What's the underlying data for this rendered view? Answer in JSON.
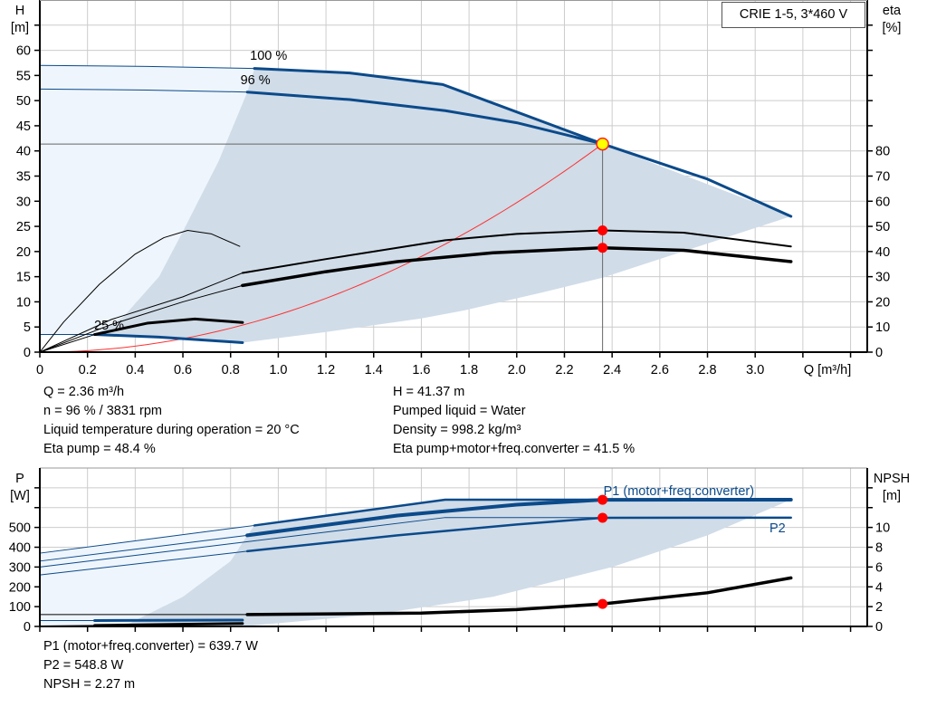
{
  "colors": {
    "curve_blue": "#0b4a8a",
    "shade_dark": "#d0dce8",
    "shade_light": "#eef5fc",
    "system_curve": "#ff3030",
    "duty_point_fill": "#ffff00",
    "duty_point_stroke": "#ff2020",
    "marker": "#ff0000",
    "grid": "#cccccc"
  },
  "title_box": "CRIE 1-5, 3*460 V",
  "top_info": {
    "left": [
      "Q = 2.36 m³/h",
      "n = 96 % / 3831 rpm",
      "Liquid temperature during operation = 20 °C",
      "Eta pump = 48.4 %"
    ],
    "right": [
      "H = 41.37 m",
      "Pumped liquid = Water",
      "Density = 998.2 kg/m³",
      "Eta pump+motor+freq.converter = 41.5 %"
    ]
  },
  "bottom_info": [
    "P1 (motor+freq.converter) = 639.7 W",
    "P2 = 548.8 W",
    "NPSH = 2.27 m"
  ],
  "chart_data": [
    {
      "type": "line",
      "xlabel": "Q [m³/h]",
      "ylabel_left": [
        "H",
        "[m]"
      ],
      "ylabel_right": [
        "eta",
        "[%]"
      ],
      "xlim": [
        0,
        3.47
      ],
      "ylim_left": [
        0,
        70
      ],
      "ylim_right": [
        0,
        140
      ],
      "xticks": [
        "0",
        "0.2",
        "0.4",
        "0.6",
        "0.8",
        "1.0",
        "1.2",
        "1.4",
        "1.6",
        "1.8",
        "2.0",
        "2.2",
        "2.4",
        "2.6",
        "2.8",
        "3.0"
      ],
      "yticks_left": [
        0,
        5,
        10,
        15,
        20,
        25,
        30,
        35,
        40,
        45,
        50,
        55,
        60
      ],
      "yticks_right": [
        0,
        10,
        20,
        30,
        40,
        50,
        60,
        70,
        80
      ],
      "grid": true,
      "curve_labels": [
        "100 %",
        "96 %",
        "25 %"
      ],
      "operating_range": [
        [
          0.9,
          56.4
        ],
        [
          1.3,
          55.5
        ],
        [
          1.69,
          53.2
        ],
        [
          2.36,
          41.4
        ],
        [
          3.15,
          27
        ],
        [
          2.36,
          14.8
        ],
        [
          2.11,
          11.9
        ],
        [
          1.78,
          8.3
        ],
        [
          1.6,
          6.7
        ],
        [
          1.2,
          4.0
        ],
        [
          0.85,
          1.9
        ],
        [
          0.5,
          3.0
        ],
        [
          0.23,
          3.5
        ],
        [
          0.35,
          7
        ],
        [
          0.5,
          15
        ],
        [
          0.6,
          24
        ],
        [
          0.75,
          38
        ],
        [
          0.87,
          51.7
        ]
      ],
      "extended_range": [
        [
          0,
          3.5
        ],
        [
          0,
          57
        ],
        [
          0.9,
          56.4
        ],
        [
          0.87,
          51.7
        ],
        [
          0.75,
          38
        ],
        [
          0.6,
          24
        ],
        [
          0.5,
          15
        ],
        [
          0.35,
          7
        ],
        [
          0.23,
          3.5
        ]
      ],
      "series": [
        {
          "name": "100 %",
          "axis": "H",
          "points": [
            [
              0,
              57
            ],
            [
              0.45,
              56.8
            ],
            [
              0.9,
              56.4
            ],
            [
              1.3,
              55.5
            ],
            [
              1.69,
              53.2
            ],
            [
              2.36,
              41.4
            ]
          ],
          "thick_from": 0.9
        },
        {
          "name": "96 %",
          "axis": "H",
          "points": [
            [
              0,
              52.3
            ],
            [
              0.45,
              52.1
            ],
            [
              0.87,
              51.7
            ],
            [
              1.3,
              50.2
            ],
            [
              1.7,
              48
            ],
            [
              2.0,
              45.6
            ],
            [
              2.36,
              41.4
            ],
            [
              2.8,
              34.4
            ],
            [
              3.15,
              27
            ]
          ],
          "thick_from": 0.87
        },
        {
          "name": "25 %",
          "axis": "H",
          "points": [
            [
              0,
              3.5
            ],
            [
              0.23,
              3.5
            ],
            [
              0.5,
              3.0
            ],
            [
              0.85,
              1.9
            ]
          ],
          "thick_from": 0.23
        },
        {
          "axis": "eta",
          "points": [
            [
              0,
              0
            ],
            [
              0.3,
              13
            ],
            [
              0.6,
              22
            ],
            [
              0.85,
              31.5
            ],
            [
              1.2,
              37
            ],
            [
              1.7,
              44.5
            ],
            [
              2.0,
              47
            ],
            [
              2.36,
              48.4
            ],
            [
              2.7,
              47.5
            ],
            [
              3.15,
              42
            ]
          ],
          "thick_from": 0.85,
          "width": 2,
          "color": "#000"
        },
        {
          "axis": "eta",
          "points": [
            [
              0,
              0
            ],
            [
              0.3,
              11
            ],
            [
              0.6,
              20
            ],
            [
              0.85,
              26.5
            ],
            [
              1.2,
              32
            ],
            [
              1.5,
              36
            ],
            [
              1.9,
              39.5
            ],
            [
              2.36,
              41.5
            ],
            [
              2.7,
              40.5
            ],
            [
              3.15,
              36
            ]
          ],
          "thick_from": 0.85,
          "width": 3.5,
          "color": "#000"
        },
        {
          "axis": "eta",
          "points": [
            [
              0,
              0
            ],
            [
              0.1,
              12
            ],
            [
              0.25,
              27
            ],
            [
              0.4,
              39
            ],
            [
              0.52,
              45.5
            ],
            [
              0.62,
              48.4
            ],
            [
              0.72,
              47
            ],
            [
              0.84,
              42
            ]
          ],
          "thick_from": 9,
          "width": 1,
          "color": "#000"
        },
        {
          "axis": "eta",
          "points": [
            [
              0,
              0
            ],
            [
              0.23,
              7
            ],
            [
              0.45,
              11.5
            ],
            [
              0.65,
              13.2
            ],
            [
              0.85,
              11.8
            ]
          ],
          "thick_from": 0.23,
          "width": 3,
          "color": "#000"
        }
      ],
      "system_curve": {
        "k": 7.43,
        "q_max": 2.36
      },
      "duty_point": {
        "Q": 2.36,
        "H": 41.37
      },
      "markers": [
        {
          "Q": 2.36,
          "eta": 48.4
        },
        {
          "Q": 2.36,
          "eta": 41.5
        }
      ]
    },
    {
      "type": "line",
      "ylabel_left": [
        "P",
        "[W]"
      ],
      "ylabel_right": [
        "NPSH",
        "[m]"
      ],
      "xlim": [
        0,
        3.47
      ],
      "ylim_left": [
        0,
        800
      ],
      "ylim_right": [
        0,
        16
      ],
      "yticks_left": [
        0,
        100,
        200,
        300,
        400,
        500
      ],
      "yticks_right": [
        0,
        2,
        4,
        6,
        8,
        10
      ],
      "grid": true,
      "series_labels": [
        "P1 (motor+freq.converter)",
        "P2"
      ],
      "operating_range": [
        [
          0.9,
          510
        ],
        [
          1.7,
          640
        ],
        [
          3.15,
          640
        ],
        [
          2.8,
          460
        ],
        [
          2.4,
          300
        ],
        [
          1.9,
          150
        ],
        [
          1.4,
          60
        ],
        [
          0.85,
          0
        ],
        [
          0.35,
          0
        ],
        [
          0.6,
          150
        ],
        [
          0.8,
          330
        ],
        [
          0.87,
          460
        ]
      ],
      "extended_range": [
        [
          0,
          0
        ],
        [
          0,
          370
        ],
        [
          0.9,
          510
        ],
        [
          0.87,
          460
        ],
        [
          0.8,
          330
        ],
        [
          0.6,
          150
        ],
        [
          0.35,
          0
        ]
      ],
      "series": [
        {
          "axis": "P",
          "points": [
            [
              0,
              370
            ],
            [
              0.9,
              510
            ],
            [
              1.7,
              640
            ],
            [
              3.15,
              640
            ]
          ],
          "thick_from": 0.9,
          "width": 2.5
        },
        {
          "axis": "P",
          "points": [
            [
              0,
              330
            ],
            [
              0.87,
              460
            ],
            [
              1.5,
              560
            ],
            [
              2.0,
              615
            ],
            [
              2.36,
              639.7
            ],
            [
              3.15,
              640
            ]
          ],
          "thick_from": 0.87,
          "width": 4
        },
        {
          "axis": "P",
          "points": [
            [
              0,
              300
            ],
            [
              1.7,
              550
            ],
            [
              3.15,
              550
            ]
          ],
          "thick_from": 9,
          "width": 1
        },
        {
          "axis": "P",
          "points": [
            [
              0,
              260
            ],
            [
              0.87,
              380
            ],
            [
              1.5,
              460
            ],
            [
              2.0,
              515
            ],
            [
              2.36,
              548.8
            ],
            [
              3.15,
              549
            ]
          ],
          "thick_from": 0.87,
          "width": 2.5
        },
        {
          "axis": "P",
          "points": [
            [
              0,
              30
            ],
            [
              0.23,
              30
            ],
            [
              0.85,
              32
            ]
          ],
          "thick_from": 0.23,
          "width": 3
        },
        {
          "axis": "NPSH",
          "points": [
            [
              0,
              1.2
            ],
            [
              0.87,
              1.2
            ],
            [
              1.6,
              1.35
            ],
            [
              2.0,
              1.7
            ],
            [
              2.36,
              2.27
            ],
            [
              2.8,
              3.4
            ],
            [
              3.15,
              4.9
            ]
          ],
          "thick_from": 0.87,
          "width": 3.5,
          "color": "#000"
        },
        {
          "axis": "NPSH",
          "points": [
            [
              0,
              0.05
            ],
            [
              0.23,
              0.1
            ],
            [
              0.85,
              0.3
            ]
          ],
          "thick_from": 0.23,
          "width": 3,
          "color": "#000"
        }
      ],
      "markers": [
        {
          "Q": 2.36,
          "P": 639.7
        },
        {
          "Q": 2.36,
          "P": 548.8
        },
        {
          "Q": 2.36,
          "NPSH": 2.27
        }
      ]
    }
  ]
}
